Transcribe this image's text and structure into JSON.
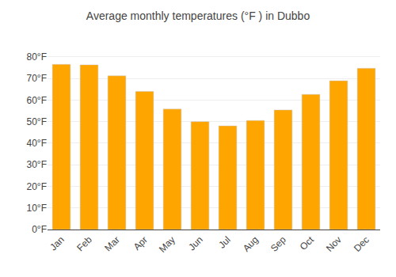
{
  "chart_data": {
    "type": "bar",
    "title": "Average monthly temperatures (°F ) in Dubbo",
    "categories": [
      "Jan",
      "Feb",
      "Mar",
      "Apr",
      "May",
      "Jun",
      "Jul",
      "Aug",
      "Sep",
      "Oct",
      "Nov",
      "Dec"
    ],
    "values": [
      76.5,
      76.3,
      71.2,
      64.0,
      55.8,
      50.0,
      48.0,
      50.5,
      55.4,
      62.6,
      68.9,
      74.7
    ],
    "color": "#FFA500",
    "ylim": [
      0,
      88
    ],
    "yticks": [
      {
        "value": 0,
        "label": "0°F"
      },
      {
        "value": 10,
        "label": "10°F"
      },
      {
        "value": 20,
        "label": "20°F"
      },
      {
        "value": 30,
        "label": "30°F"
      },
      {
        "value": 40,
        "label": "40°F"
      },
      {
        "value": 50,
        "label": "50°F"
      },
      {
        "value": 60,
        "label": "60°F"
      },
      {
        "value": 70,
        "label": "70°F"
      },
      {
        "value": 80,
        "label": "80°F"
      }
    ],
    "grid": true
  }
}
